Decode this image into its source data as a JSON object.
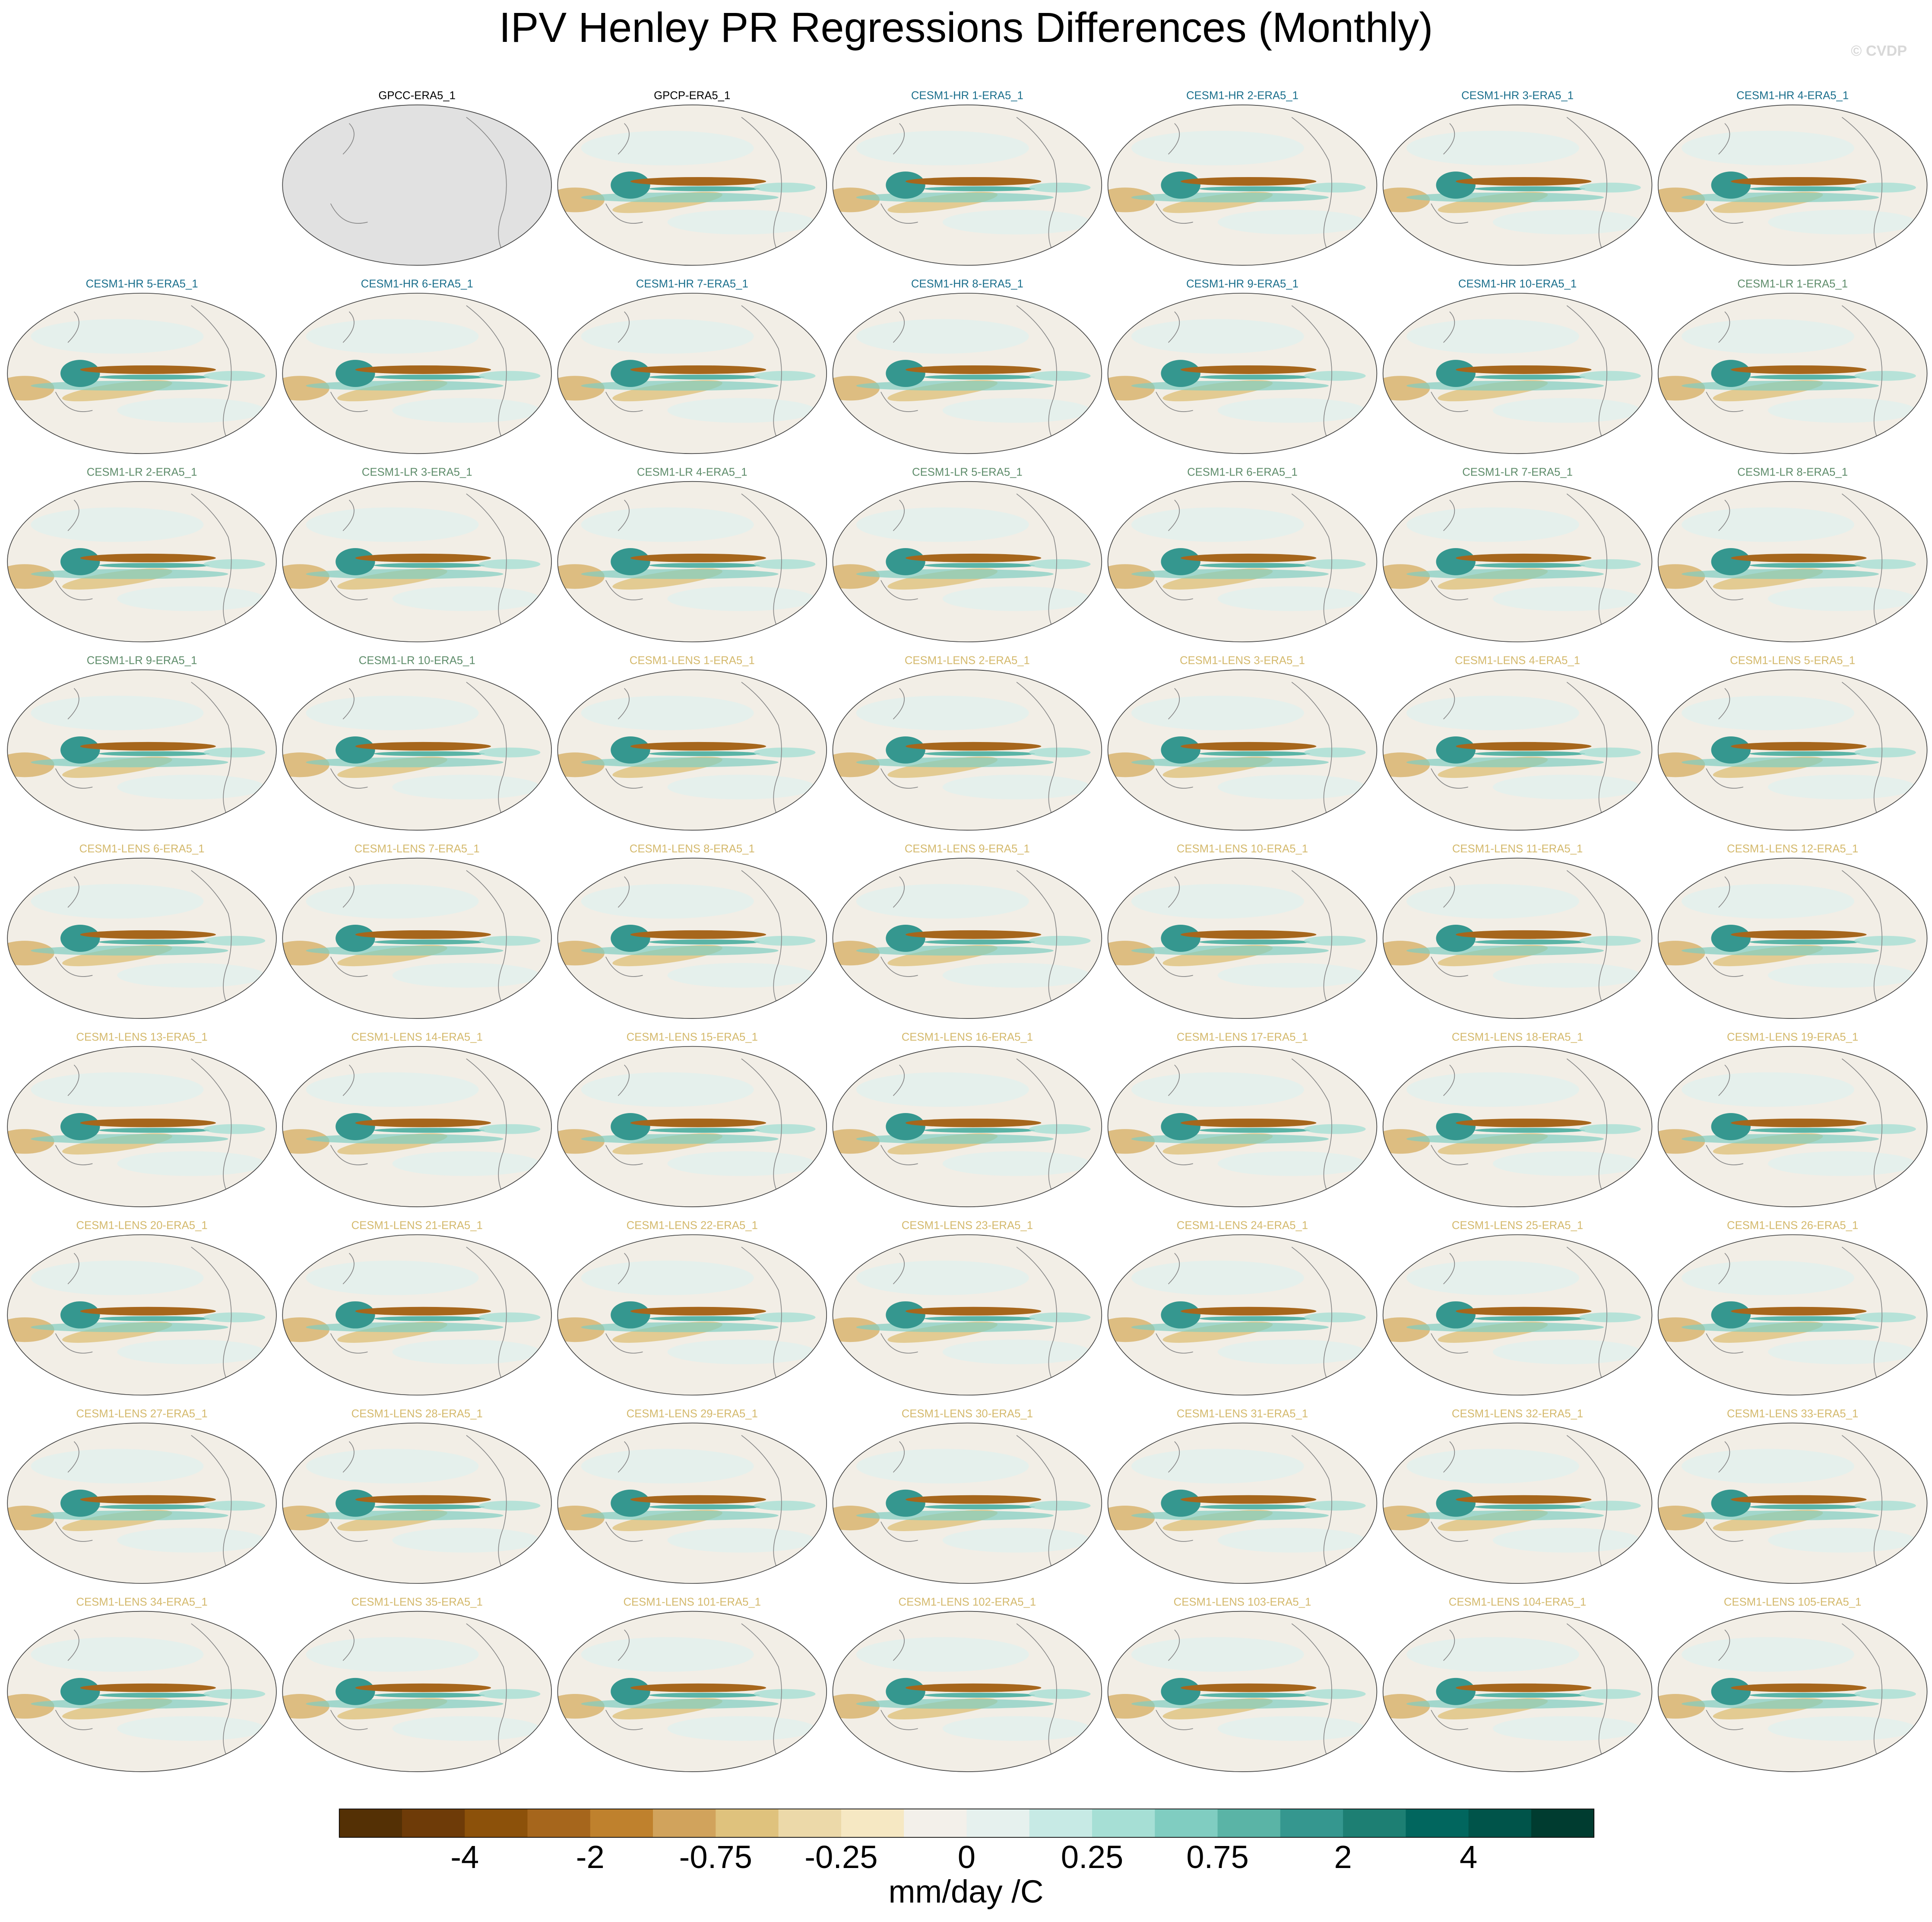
{
  "title": "IPV Henley PR Regressions Differences (Monthly)",
  "watermark": "© CVDP",
  "panels": [
    {
      "label": "GPCC-ERA5_1",
      "color": "#000000"
    },
    {
      "label": "GPCP-ERA5_1",
      "color": "#000000"
    },
    {
      "label": "CESM1-HR 1-ERA5_1",
      "color": "#1b6f8c"
    },
    {
      "label": "CESM1-HR 2-ERA5_1",
      "color": "#1b6f8c"
    },
    {
      "label": "CESM1-HR 3-ERA5_1",
      "color": "#1b6f8c"
    },
    {
      "label": "CESM1-HR 4-ERA5_1",
      "color": "#1b6f8c"
    },
    {
      "label": "CESM1-HR 5-ERA5_1",
      "color": "#1b6f8c"
    },
    {
      "label": "CESM1-HR 6-ERA5_1",
      "color": "#1b6f8c"
    },
    {
      "label": "CESM1-HR 7-ERA5_1",
      "color": "#1b6f8c"
    },
    {
      "label": "CESM1-HR 8-ERA5_1",
      "color": "#1b6f8c"
    },
    {
      "label": "CESM1-HR 9-ERA5_1",
      "color": "#1b6f8c"
    },
    {
      "label": "CESM1-HR 10-ERA5_1",
      "color": "#1b6f8c"
    },
    {
      "label": "CESM1-LR 1-ERA5_1",
      "color": "#5e8c6a"
    },
    {
      "label": "CESM1-LR 2-ERA5_1",
      "color": "#5e8c6a"
    },
    {
      "label": "CESM1-LR 3-ERA5_1",
      "color": "#5e8c6a"
    },
    {
      "label": "CESM1-LR 4-ERA5_1",
      "color": "#5e8c6a"
    },
    {
      "label": "CESM1-LR 5-ERA5_1",
      "color": "#5e8c6a"
    },
    {
      "label": "CESM1-LR 6-ERA5_1",
      "color": "#5e8c6a"
    },
    {
      "label": "CESM1-LR 7-ERA5_1",
      "color": "#5e8c6a"
    },
    {
      "label": "CESM1-LR 8-ERA5_1",
      "color": "#5e8c6a"
    },
    {
      "label": "CESM1-LR 9-ERA5_1",
      "color": "#5e8c6a"
    },
    {
      "label": "CESM1-LR 10-ERA5_1",
      "color": "#5e8c6a"
    },
    {
      "label": "CESM1-LENS 1-ERA5_1",
      "color": "#d4b96c"
    },
    {
      "label": "CESM1-LENS 2-ERA5_1",
      "color": "#d4b96c"
    },
    {
      "label": "CESM1-LENS 3-ERA5_1",
      "color": "#d4b96c"
    },
    {
      "label": "CESM1-LENS 4-ERA5_1",
      "color": "#d4b96c"
    },
    {
      "label": "CESM1-LENS 5-ERA5_1",
      "color": "#d4b96c"
    },
    {
      "label": "CESM1-LENS 6-ERA5_1",
      "color": "#d4b96c"
    },
    {
      "label": "CESM1-LENS 7-ERA5_1",
      "color": "#d4b96c"
    },
    {
      "label": "CESM1-LENS 8-ERA5_1",
      "color": "#d4b96c"
    },
    {
      "label": "CESM1-LENS 9-ERA5_1",
      "color": "#d4b96c"
    },
    {
      "label": "CESM1-LENS 10-ERA5_1",
      "color": "#d4b96c"
    },
    {
      "label": "CESM1-LENS 11-ERA5_1",
      "color": "#d4b96c"
    },
    {
      "label": "CESM1-LENS 12-ERA5_1",
      "color": "#d4b96c"
    },
    {
      "label": "CESM1-LENS 13-ERA5_1",
      "color": "#d4b96c"
    },
    {
      "label": "CESM1-LENS 14-ERA5_1",
      "color": "#d4b96c"
    },
    {
      "label": "CESM1-LENS 15-ERA5_1",
      "color": "#d4b96c"
    },
    {
      "label": "CESM1-LENS 16-ERA5_1",
      "color": "#d4b96c"
    },
    {
      "label": "CESM1-LENS 17-ERA5_1",
      "color": "#d4b96c"
    },
    {
      "label": "CESM1-LENS 18-ERA5_1",
      "color": "#d4b96c"
    },
    {
      "label": "CESM1-LENS 19-ERA5_1",
      "color": "#d4b96c"
    },
    {
      "label": "CESM1-LENS 20-ERA5_1",
      "color": "#d4b96c"
    },
    {
      "label": "CESM1-LENS 21-ERA5_1",
      "color": "#d4b96c"
    },
    {
      "label": "CESM1-LENS 22-ERA5_1",
      "color": "#d4b96c"
    },
    {
      "label": "CESM1-LENS 23-ERA5_1",
      "color": "#d4b96c"
    },
    {
      "label": "CESM1-LENS 24-ERA5_1",
      "color": "#d4b96c"
    },
    {
      "label": "CESM1-LENS 25-ERA5_1",
      "color": "#d4b96c"
    },
    {
      "label": "CESM1-LENS 26-ERA5_1",
      "color": "#d4b96c"
    },
    {
      "label": "CESM1-LENS 27-ERA5_1",
      "color": "#d4b96c"
    },
    {
      "label": "CESM1-LENS 28-ERA5_1",
      "color": "#d4b96c"
    },
    {
      "label": "CESM1-LENS 29-ERA5_1",
      "color": "#d4b96c"
    },
    {
      "label": "CESM1-LENS 30-ERA5_1",
      "color": "#d4b96c"
    },
    {
      "label": "CESM1-LENS 31-ERA5_1",
      "color": "#d4b96c"
    },
    {
      "label": "CESM1-LENS 32-ERA5_1",
      "color": "#d4b96c"
    },
    {
      "label": "CESM1-LENS 33-ERA5_1",
      "color": "#d4b96c"
    },
    {
      "label": "CESM1-LENS 34-ERA5_1",
      "color": "#d4b96c"
    },
    {
      "label": "CESM1-LENS 35-ERA5_1",
      "color": "#d4b96c"
    },
    {
      "label": "CESM1-LENS 101-ERA5_1",
      "color": "#d4b96c"
    },
    {
      "label": "CESM1-LENS 102-ERA5_1",
      "color": "#d4b96c"
    },
    {
      "label": "CESM1-LENS 103-ERA5_1",
      "color": "#d4b96c"
    },
    {
      "label": "CESM1-LENS 104-ERA5_1",
      "color": "#d4b96c"
    },
    {
      "label": "CESM1-LENS 105-ERA5_1",
      "color": "#d4b96c"
    }
  ],
  "colorbar": {
    "colors": [
      "#543005",
      "#6e3b08",
      "#8c510a",
      "#a6661c",
      "#bf812d",
      "#d1a35c",
      "#dfc27d",
      "#ecd9a9",
      "#f6e8c3",
      "#f3f0ea",
      "#e6f1ee",
      "#c7eae5",
      "#a6dfd5",
      "#80cdc1",
      "#5ab4a6",
      "#35978f",
      "#1d7f73",
      "#01665e",
      "#00544a",
      "#003c30"
    ],
    "ticks": [
      -4,
      -2,
      -0.75,
      -0.25,
      0,
      0.25,
      0.75,
      2,
      4
    ],
    "label": "mm/day /C"
  }
}
